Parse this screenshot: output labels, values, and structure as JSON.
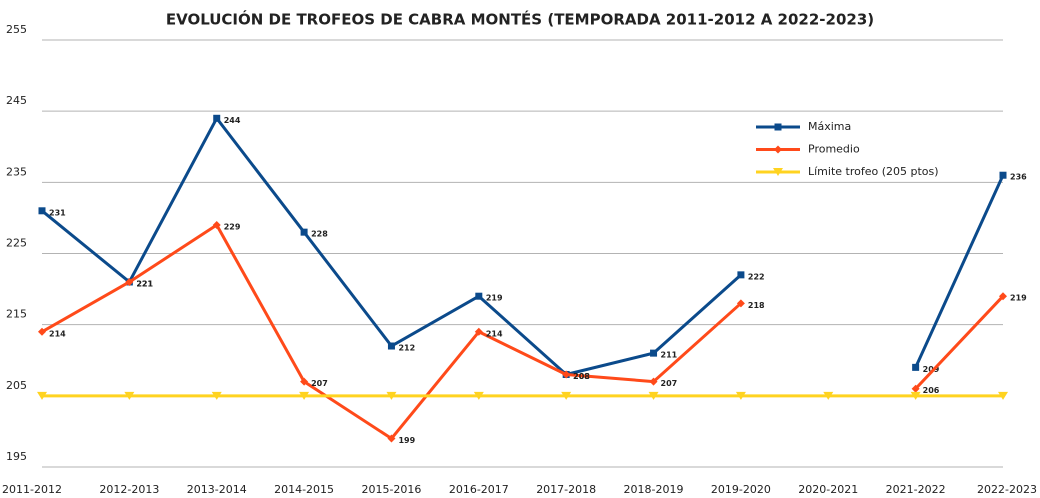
{
  "chart_data": {
    "type": "line",
    "title": "EVOLUCIÓN DE TROFEOS DE CABRA MONTÉS (TEMPORADA 2011-2012 A 2022-2023)",
    "categories": [
      "2011-2012",
      "2012-2013",
      "2013-2014",
      "2014-2015",
      "2015-2016",
      "2016-2017",
      "2017-2018",
      "2018-2019",
      "2019-2020",
      "2020-2021",
      "2021-2022",
      "2022-2023"
    ],
    "series": [
      {
        "name": "Máxima",
        "color": "#0b4a8b",
        "marker": "square",
        "show_labels": true,
        "values": [
          231,
          221,
          244,
          228,
          212,
          219,
          208,
          211,
          222,
          null,
          209,
          236
        ]
      },
      {
        "name": "Promedio",
        "color": "#ff4a1a",
        "marker": "diamond",
        "show_labels": true,
        "values": [
          214,
          221,
          229,
          207,
          199,
          214,
          208,
          207,
          218,
          null,
          206,
          219
        ]
      },
      {
        "name": "Límite trofeo (205 ptos)",
        "color": "#ffd320",
        "marker": "triangle",
        "show_labels": false,
        "values": [
          205,
          205,
          205,
          205,
          205,
          205,
          205,
          205,
          205,
          205,
          205,
          205
        ]
      }
    ],
    "ylim": [
      195,
      255
    ],
    "yticks": [
      195,
      205,
      215,
      225,
      235,
      245,
      255
    ],
    "grid": true,
    "legend": "upper right"
  }
}
